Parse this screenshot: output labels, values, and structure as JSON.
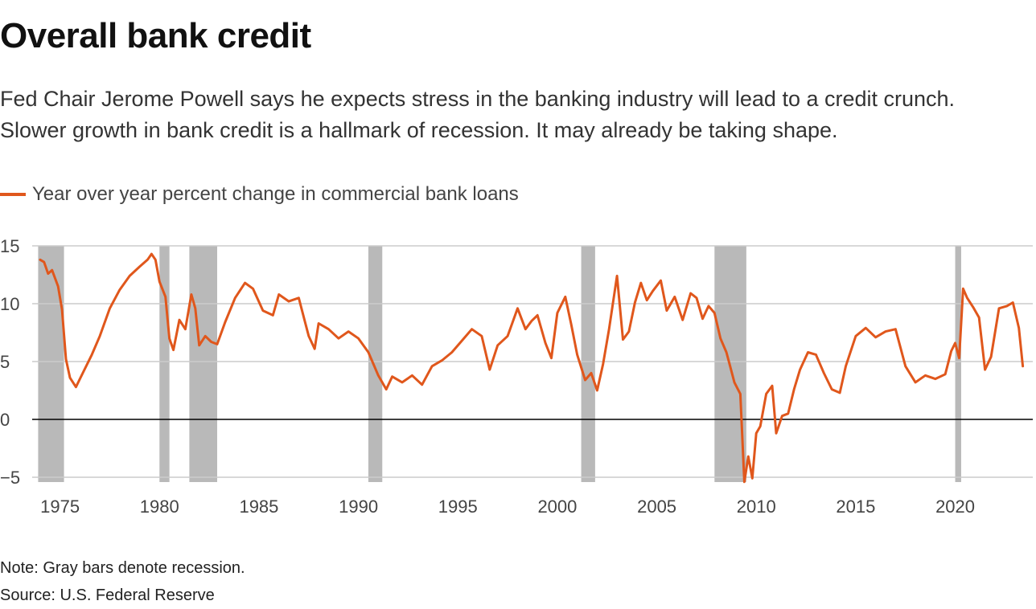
{
  "header": {
    "title": "Overall bank credit",
    "subtitle_line1": "Fed Chair Jerome Powell says he expects stress in the banking industry will lead to a credit crunch.",
    "subtitle_line2": "Slower growth in bank credit is a hallmark of recession. It may already be taking shape."
  },
  "footer": {
    "note": "Note: Gray bars denote recession.",
    "source": "Source: U.S. Federal Reserve"
  },
  "colors": {
    "line": "#e0571c",
    "recession": "#b9b9b9",
    "grid": "#cccccc",
    "zero": "#000000"
  },
  "chart_data": {
    "type": "line",
    "title": "Overall bank credit",
    "xlabel": "",
    "ylabel": "",
    "xlim": [
      1973.6,
      2023.9
    ],
    "ylim": [
      -5,
      15
    ],
    "yticks": [
      15,
      10,
      5,
      0,
      -5
    ],
    "ytick_labels": [
      "15",
      "10",
      "5",
      "0",
      "−5"
    ],
    "xticks": [
      1975,
      1980,
      1985,
      1990,
      1995,
      2000,
      2005,
      2010,
      2015,
      2020
    ],
    "xtick_labels": [
      "1975",
      "1980",
      "1985",
      "1990",
      "1995",
      "2000",
      "2005",
      "2010",
      "2015",
      "2020"
    ],
    "grid": true,
    "legend_position": "top-left",
    "recessions": [
      [
        1973.9,
        1975.2
      ],
      [
        1980.0,
        1980.5
      ],
      [
        1981.5,
        1982.9
      ],
      [
        1990.5,
        1991.2
      ],
      [
        2001.2,
        2001.9
      ],
      [
        2007.9,
        2009.5
      ],
      [
        2020.0,
        2020.3
      ]
    ],
    "series": [
      {
        "name": "Year over year percent change in commercial bank loans",
        "x": [
          1974.0,
          1974.2,
          1974.4,
          1974.6,
          1974.9,
          1975.1,
          1975.3,
          1975.5,
          1975.8,
          1976.2,
          1976.6,
          1977.0,
          1977.5,
          1978.0,
          1978.5,
          1979.0,
          1979.4,
          1979.6,
          1979.8,
          1980.0,
          1980.3,
          1980.5,
          1980.7,
          1981.0,
          1981.3,
          1981.6,
          1981.8,
          1982.0,
          1982.3,
          1982.6,
          1982.9,
          1983.3,
          1983.8,
          1984.3,
          1984.7,
          1985.2,
          1985.7,
          1986.0,
          1986.5,
          1987.0,
          1987.5,
          1987.8,
          1988.0,
          1988.5,
          1989.0,
          1989.5,
          1990.0,
          1990.5,
          1991.0,
          1991.4,
          1991.7,
          1992.2,
          1992.7,
          1993.2,
          1993.7,
          1994.2,
          1994.7,
          1995.2,
          1995.7,
          1996.2,
          1996.6,
          1997.0,
          1997.5,
          1998.0,
          1998.4,
          1998.7,
          1999.0,
          1999.4,
          1999.7,
          2000.0,
          2000.4,
          2000.7,
          2001.0,
          2001.4,
          2001.7,
          2002.0,
          2002.3,
          2002.6,
          2003.0,
          2003.3,
          2003.6,
          2003.9,
          2004.2,
          2004.5,
          2004.8,
          2005.2,
          2005.5,
          2005.9,
          2006.3,
          2006.7,
          2007.0,
          2007.3,
          2007.6,
          2007.9,
          2008.2,
          2008.5,
          2008.7,
          2008.9,
          2009.2,
          2009.4,
          2009.6,
          2009.8,
          2010.0,
          2010.2,
          2010.5,
          2010.8,
          2011.0,
          2011.3,
          2011.6,
          2011.9,
          2012.2,
          2012.6,
          2013.0,
          2013.4,
          2013.8,
          2014.2,
          2014.5,
          2015.0,
          2015.5,
          2016.0,
          2016.5,
          2017.0,
          2017.5,
          2018.0,
          2018.5,
          2019.0,
          2019.5,
          2019.8,
          2020.0,
          2020.2,
          2020.4,
          2020.6,
          2020.9,
          2021.2,
          2021.5,
          2021.8,
          2022.2,
          2022.6,
          2022.9,
          2023.2,
          2023.4
        ],
        "y": [
          13.8,
          13.6,
          12.6,
          12.9,
          11.5,
          9.5,
          5.2,
          3.6,
          2.8,
          4.2,
          5.6,
          7.2,
          9.6,
          11.2,
          12.4,
          13.2,
          13.8,
          14.3,
          13.8,
          11.9,
          10.6,
          7.0,
          6.0,
          8.6,
          7.8,
          10.8,
          9.6,
          6.4,
          7.2,
          6.7,
          6.5,
          8.4,
          10.5,
          11.8,
          11.3,
          9.4,
          9.0,
          10.8,
          10.2,
          10.5,
          7.2,
          6.1,
          8.3,
          7.8,
          7.0,
          7.6,
          7.0,
          5.8,
          3.8,
          2.6,
          3.7,
          3.2,
          3.8,
          3.0,
          4.6,
          5.1,
          5.8,
          6.8,
          7.8,
          7.2,
          4.3,
          6.4,
          7.2,
          9.6,
          7.8,
          8.5,
          9.0,
          6.6,
          5.3,
          9.2,
          10.6,
          8.2,
          5.6,
          3.4,
          4.0,
          2.5,
          4.8,
          7.8,
          12.4,
          6.9,
          7.6,
          10.1,
          11.8,
          10.3,
          11.1,
          12.0,
          9.4,
          10.6,
          8.6,
          10.9,
          10.5,
          8.7,
          9.8,
          9.2,
          7.0,
          5.8,
          4.5,
          3.2,
          2.2,
          -5.4,
          -3.2,
          -5.1,
          -1.2,
          -0.6,
          2.2,
          2.9,
          -1.2,
          0.3,
          0.5,
          2.6,
          4.3,
          5.8,
          5.6,
          4.0,
          2.6,
          2.3,
          4.6,
          7.2,
          7.9,
          7.1,
          7.6,
          7.8,
          4.6,
          3.2,
          3.8,
          3.5,
          3.9,
          5.9,
          6.6,
          5.3,
          11.3,
          10.5,
          9.7,
          8.8,
          4.3,
          5.4,
          9.6,
          9.8,
          10.1,
          7.9,
          4.6
        ]
      }
    ]
  }
}
